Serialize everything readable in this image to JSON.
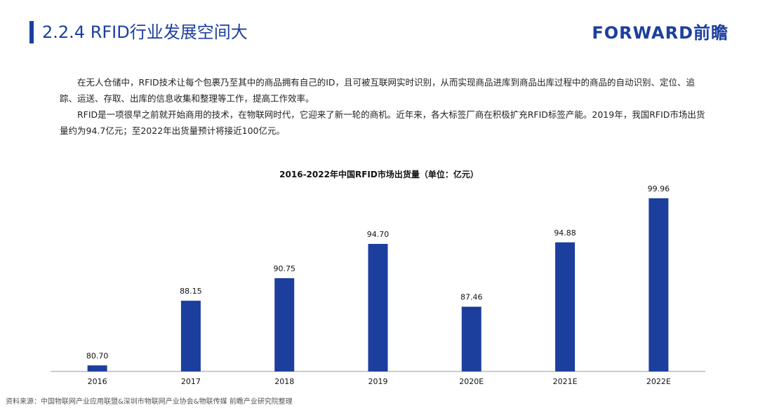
{
  "header": {
    "title": "2.2.4 RFID行业发展空间大",
    "logo": "FORWARD前瞻"
  },
  "paragraphs": [
    "在无人仓储中，RFID技术让每个包裹乃至其中的商品拥有自己的ID，且可被互联网实时识别，从而实现商品进库到商品出库过程中的商品的自动识别、定位、追踪、运送、存取、出库的信息收集和整理等工作，提高工作效率。",
    "RFID是一项很早之前就开始商用的技术，在物联网时代，它迎来了新一轮的商机。近年来，各大标签厂商在积极扩充RFID标签产能。2019年，我国RFID市场出货量约为94.7亿元；至2022年出货量预计将接近100亿元。"
  ],
  "chart_data": {
    "type": "bar",
    "title": "2016-2022年中国RFID市场出货量（单位：亿元）",
    "categories": [
      "2016",
      "2017",
      "2018",
      "2019",
      "2020E",
      "2021E",
      "2022E"
    ],
    "values": [
      80.7,
      88.15,
      90.75,
      94.7,
      87.46,
      94.88,
      99.96
    ],
    "value_labels": [
      "80.70",
      "88.15",
      "90.75",
      "94.70",
      "87.46",
      "94.88",
      "99.96"
    ],
    "color": "#1c3f9e",
    "ylim": [
      80,
      101
    ]
  },
  "source": "资料来源：中国物联网产业应用联盟&深圳市物联网产业协会&物联传媒 前瞻产业研究院整理"
}
